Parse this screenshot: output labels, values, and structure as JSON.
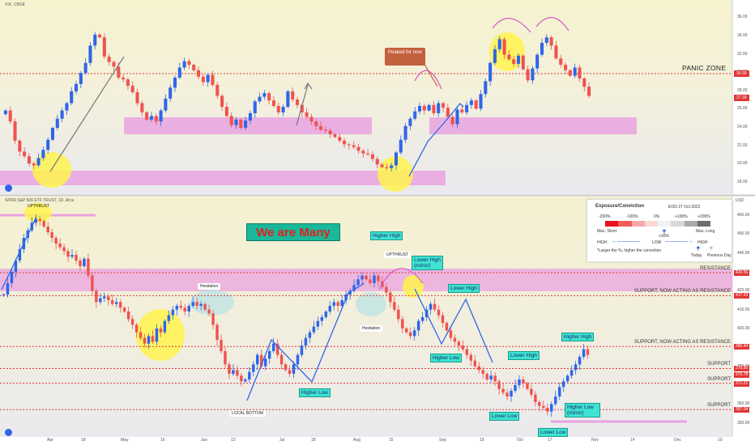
{
  "vix_panel": {
    "title": "VIX, CBOE",
    "zone_label": "PANIC ZONE",
    "callout": "Peaked for now",
    "badge_values": [
      "30.00",
      "27.39"
    ],
    "y_ticks": [
      "36.00",
      "34.00",
      "32.00",
      "30.00",
      "28.00",
      "26.00",
      "24.00",
      "22.00",
      "20.00",
      "18.00"
    ]
  },
  "spy_panel": {
    "title": "SPDR S&P 500 ETF TRUST, 1D, Arca",
    "headline": "We are Many",
    "y_ticks": [
      "460.00",
      "450.00",
      "440.00",
      "430.00",
      "420.00",
      "410.00",
      "400.00",
      "390.00",
      "380.00",
      "370.00",
      "360.00",
      "350.00"
    ],
    "y_unit": "USD",
    "badge_values": [
      "429.56",
      "417.43",
      "390.44",
      "378.80",
      "370.78",
      "371.01",
      "357.04"
    ],
    "labels": {
      "upthrust_top": "UPTHRUST",
      "hesitation1": "Hesitation",
      "hesitation2": "Hesitation",
      "upthrust": "UPTHRUST",
      "higher_high1": "Higher High",
      "lower_high_minor": "Lower High (minor)",
      "lower_high1": "Lower High",
      "higher_low1": "Higher Low",
      "lower_high2": "Lower High",
      "higher_high2": "Higher High",
      "local_bottom": "LOCAL BOTTOM",
      "higher_low2": "Higher Low",
      "lower_low1": "Lower Low",
      "higher_low_minor": "Higher Low (minor)",
      "lower_low2": "Lower Low"
    },
    "levels": [
      "RESISTANCE",
      "SUPPORT, NOW ACTING AS RESISTANCE",
      "SUPPORT, NOW ACTING AS RESISTANCE",
      "SUPPORT",
      "SUPPORT",
      "SUPPORT"
    ]
  },
  "legend": {
    "title": "Exposure/Conviction",
    "date": "EOD 27 Oct 2022",
    "scale": [
      "-200%",
      "-100%",
      "0%",
      "+100%",
      "+200%"
    ],
    "max_short": "Max. Short",
    "max_long": "Max. Long",
    "plus30": "+30%",
    "high_left": "HIGH",
    "low": "LOW",
    "high_right": "HIGH",
    "note": "*Larger the %, higher the conviction",
    "today": "Today",
    "prev": "Previous Day"
  },
  "x_axis": [
    "Apr",
    "18",
    "May",
    "16",
    "Jun",
    "13",
    "Jul",
    "18",
    "Aug",
    "15",
    "Sep",
    "19",
    "Oct",
    "17",
    "Nov",
    "14",
    "Dec",
    "19"
  ],
  "colors": {
    "up": "#2f66e8",
    "down": "#ef5350",
    "zone": "#e9a3e0",
    "highlight": "#fff34d",
    "level": "#e23636",
    "panel": "#f0f0d4"
  },
  "chart_data": [
    {
      "type": "candlestick",
      "title": "VIX, CBOE",
      "ylim": [
        17,
        37
      ],
      "yticks": [
        18,
        20,
        22,
        24,
        26,
        28,
        30,
        32,
        34,
        36
      ],
      "x": [
        "Apr",
        "18",
        "May",
        "16",
        "Jun",
        "13",
        "Jul",
        "18",
        "Aug",
        "15",
        "Sep",
        "19",
        "Oct",
        "17",
        "Nov",
        "14",
        "Dec",
        "19"
      ],
      "levels": [
        30.0
      ],
      "last": 27.39,
      "closes": [
        25.8,
        24.6,
        22.5,
        21.3,
        20.8,
        20.0,
        19.8,
        20.6,
        21.5,
        22.6,
        23.9,
        24.9,
        25.8,
        26.6,
        27.9,
        28.7,
        29.9,
        31.0,
        32.9,
        34.1,
        33.8,
        31.7,
        31.1,
        30.6,
        29.4,
        29.2,
        28.5,
        27.8,
        26.6,
        25.6,
        24.8,
        25.2,
        24.6,
        25.8,
        27.1,
        28.3,
        29.4,
        30.5,
        31.2,
        30.8,
        30.2,
        29.5,
        28.9,
        29.7,
        28.6,
        27.4,
        26.2,
        25.2,
        24.2,
        24.8,
        23.9,
        24.7,
        25.5,
        26.8,
        27.3,
        27.7,
        26.9,
        26.3,
        25.6,
        26.2,
        27.9,
        27.0,
        26.4,
        25.6,
        25.1,
        24.6,
        24.1,
        23.7,
        23.6,
        23.2,
        22.9,
        22.5,
        22.1,
        22.0,
        21.8,
        21.4,
        21.1,
        21.0,
        20.5,
        19.9,
        19.6,
        19.5,
        19.8,
        21.2,
        22.6,
        24.1,
        24.9,
        25.7,
        26.3,
        25.8,
        26.4,
        25.5,
        26.6,
        26.1,
        25.1,
        24.3,
        25.9,
        25.6,
        26.4,
        26.9,
        26.0,
        27.6,
        29.0,
        31.0,
        32.5,
        33.6,
        31.9,
        31.4,
        30.9,
        31.8,
        30.3,
        29.1,
        30.4,
        31.9,
        33.2,
        33.8,
        32.9,
        31.5,
        30.8,
        30.2,
        29.6,
        30.5,
        29.3,
        28.4,
        27.39
      ]
    },
    {
      "type": "candlestick",
      "title": "SPDR S&P 500 ETF TRUST, 1D, Arca",
      "ylim": [
        346,
        466
      ],
      "yticks": [
        350,
        360,
        370,
        380,
        390,
        400,
        410,
        420,
        430,
        440,
        450,
        460
      ],
      "x": [
        "Apr",
        "18",
        "May",
        "16",
        "Jun",
        "13",
        "Jul",
        "18",
        "Aug",
        "15",
        "Sep",
        "19",
        "Oct",
        "17",
        "Nov",
        "14",
        "Dec",
        "19"
      ],
      "levels": [
        429.56,
        417.43,
        390.44,
        378.8,
        371.01,
        357.04
      ],
      "closes": [
        418,
        424,
        430,
        436,
        442,
        448,
        452,
        456,
        458,
        457,
        454,
        451,
        448,
        445,
        443,
        441,
        438,
        439,
        436,
        433,
        437,
        428,
        420,
        414,
        416,
        417,
        415,
        413,
        414,
        411,
        409,
        405,
        402,
        398,
        395,
        392,
        396,
        393,
        400,
        398,
        404,
        407,
        410,
        412,
        411,
        409,
        412,
        414,
        412,
        413,
        410,
        408,
        402,
        394,
        388,
        381,
        376,
        378,
        375,
        372,
        373,
        377,
        381,
        386,
        380,
        384,
        388,
        392,
        386,
        381,
        378,
        376,
        381,
        386,
        391,
        395,
        398,
        401,
        404,
        406,
        409,
        412,
        414,
        412,
        415,
        418,
        420,
        423,
        426,
        428,
        426,
        424,
        428,
        425,
        422,
        419,
        414,
        410,
        405,
        400,
        398,
        396,
        399,
        404,
        406,
        410,
        413,
        410,
        407,
        403,
        399,
        395,
        393,
        391,
        389,
        386,
        383,
        380,
        378,
        376,
        373,
        375,
        372,
        368,
        366,
        364,
        367,
        370,
        373,
        371,
        368,
        365,
        361,
        359,
        358,
        356,
        360,
        364,
        369,
        372,
        375,
        378,
        381,
        385,
        389,
        386
      ]
    }
  ]
}
